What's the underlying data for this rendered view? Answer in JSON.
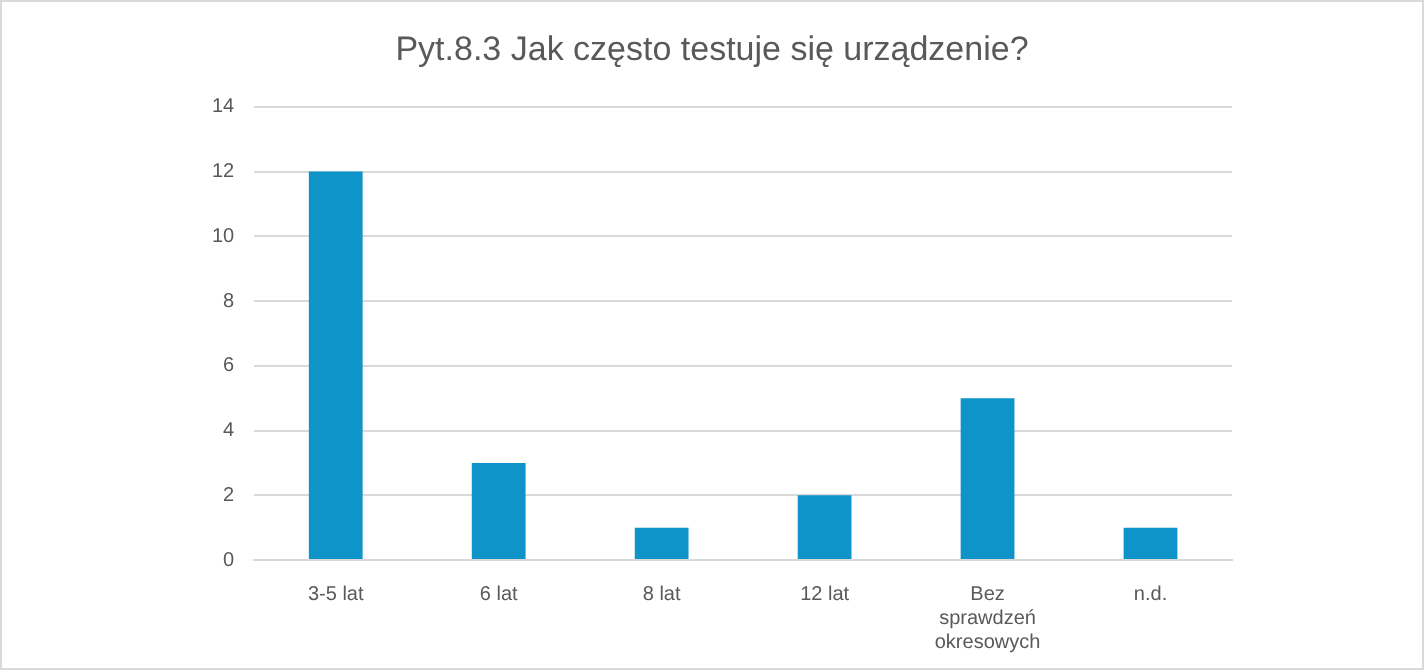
{
  "chart_data": {
    "type": "bar",
    "title": "Pyt.8.3 Jak często testuje się urządzenie?",
    "categories": [
      "3-5 lat",
      "6 lat",
      "8 lat",
      "12 lat",
      "Bez sprawdzeń okresowych",
      "n.d."
    ],
    "values": [
      12,
      3,
      1,
      2,
      5,
      1
    ],
    "color": "#0e94c8",
    "ylim": [
      0,
      14
    ],
    "yticks": [
      0,
      2,
      4,
      6,
      8,
      10,
      12,
      14
    ],
    "grid": "y"
  }
}
